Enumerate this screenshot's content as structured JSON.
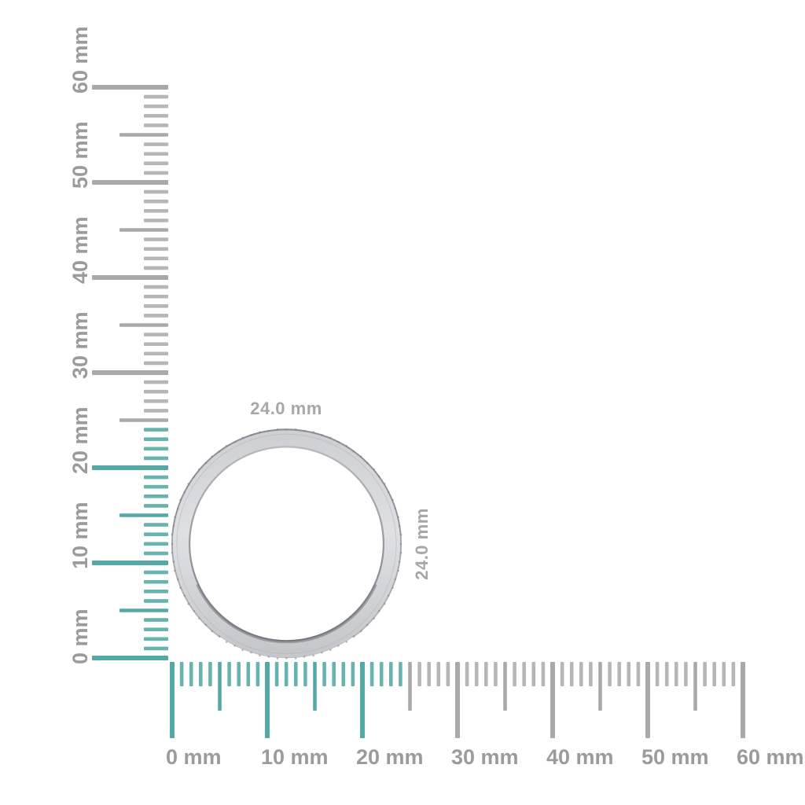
{
  "figure_type": "ring-size-measurement-diagram",
  "unit": "mm",
  "rulers": {
    "min_mm": 0,
    "max_mm": 60,
    "minor_step_mm": 1,
    "half_step_mm": 5,
    "major_step_mm": 10,
    "highlight_to_mm": 24,
    "vertical_labels": [
      "0 mm",
      "10 mm",
      "20 mm",
      "30 mm",
      "40 mm",
      "50 mm",
      "60 mm"
    ],
    "horizontal_labels": [
      "0 mm",
      "10 mm",
      "20 mm",
      "30 mm",
      "40 mm",
      "50 mm",
      "60 mm"
    ]
  },
  "ring": {
    "width_label": "24.0 mm",
    "height_label": "24.0 mm",
    "outer_diameter_mm": 24.0
  },
  "colors": {
    "background": "#ffffff",
    "highlight_teal_strong": "#55a9a4",
    "highlight_teal_minor": "#68b3ae",
    "tick_gray_minor": "#b6b6b6",
    "tick_gray_strong": "#a9a9a9",
    "ruler_label_gray": "#9b9b9b",
    "dimension_label_gray": "#a7a7a7",
    "ring_band_light": "#e0e1e4",
    "ring_band_mid": "#d0d1d5",
    "ring_band_dark": "#c5c7cb",
    "ring_edge_dark": "#8d8f94",
    "ring_inner_shadow": "#77797e",
    "ring_highlight_white": "#ffffff",
    "ring_stone_speck": "#7e8085"
  }
}
